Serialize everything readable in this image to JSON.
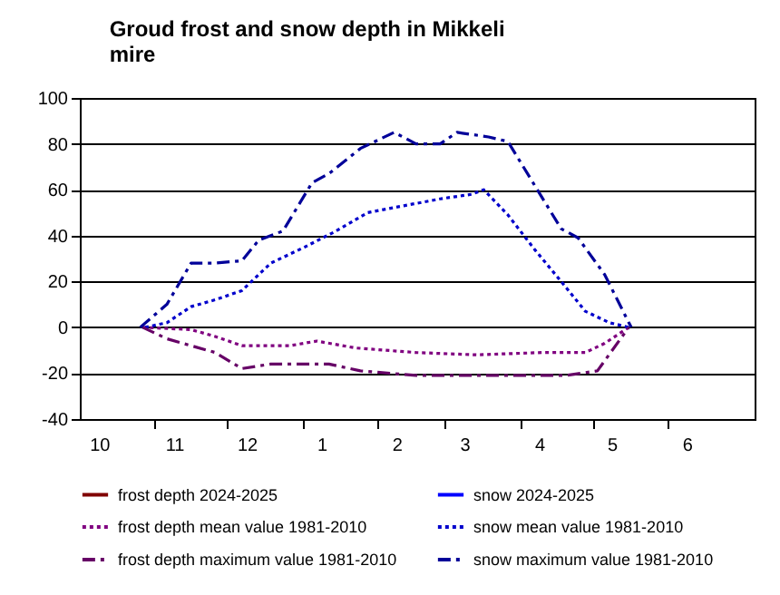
{
  "chart_data": {
    "type": "line",
    "title": "Groud frost and snow depth in Mikkeli mire",
    "xlim": [
      "2024-10-01",
      "2025-07-07"
    ],
    "xticks": [
      {
        "value": "2024-10-09",
        "label": "10"
      },
      {
        "value": "2024-11-01",
        "label": null
      },
      {
        "value": "2024-11-09",
        "label": "11"
      },
      {
        "value": "2024-12-01",
        "label": null
      },
      {
        "value": "2024-12-09",
        "label": "12"
      },
      {
        "value": "2025-01-01",
        "label": null
      },
      {
        "value": "2025-01-09",
        "label": "1"
      },
      {
        "value": "2025-02-01",
        "label": null
      },
      {
        "value": "2025-02-09",
        "label": "2"
      },
      {
        "value": "2025-03-01",
        "label": null
      },
      {
        "value": "2025-03-09",
        "label": "3"
      },
      {
        "value": "2025-04-01",
        "label": null
      },
      {
        "value": "2025-04-09",
        "label": "4"
      },
      {
        "value": "2025-05-01",
        "label": null
      },
      {
        "value": "2025-05-09",
        "label": "5"
      },
      {
        "value": "2025-06-01",
        "label": null
      },
      {
        "value": "2025-06-09",
        "label": "6"
      }
    ],
    "ylim": [
      -40,
      100
    ],
    "yticks": [
      -40,
      -20,
      0,
      20,
      40,
      60,
      80,
      100
    ],
    "grid": "y",
    "legend": "bottom",
    "series": [
      {
        "name": "frost depth 2024-2025",
        "color": "#800000",
        "line_style": "solid"
      },
      {
        "name": "snow 2024-2025",
        "color": "#0000ff",
        "line_style": "solid"
      },
      {
        "name": "frost depth mean value 1981-2010",
        "color": "#800080",
        "line_style": "dotted",
        "x": [
          "2024-10-27",
          "2024-11-16",
          "2024-11-26",
          "2024-12-07",
          "2024-12-27",
          "2025-01-07",
          "2025-01-23",
          "2025-02-17",
          "2025-03-14",
          "2025-04-10",
          "2025-04-28",
          "2025-05-06",
          "2025-05-16"
        ],
        "values": [
          0,
          -1,
          -4,
          -8,
          -8,
          -6,
          -9,
          -11,
          -12,
          -11,
          -11,
          -7,
          0
        ]
      },
      {
        "name": "snow mean value 1981-2010",
        "color": "#0000cc",
        "line_style": "dotted",
        "x": [
          "2024-10-28",
          "2024-11-06",
          "2024-11-16",
          "2024-11-26",
          "2024-12-07",
          "2024-12-19",
          "2025-01-02",
          "2025-01-15",
          "2025-01-28",
          "2025-02-12",
          "2025-02-27",
          "2025-03-12",
          "2025-03-17",
          "2025-03-27",
          "2025-04-07",
          "2025-04-18",
          "2025-04-28",
          "2025-05-08",
          "2025-05-16"
        ],
        "values": [
          0,
          2,
          9,
          12,
          16,
          28,
          35,
          42,
          50,
          53,
          56,
          58,
          60,
          49,
          34,
          20,
          7,
          2,
          0
        ]
      },
      {
        "name": "frost depth maximum value 1981-2010",
        "color": "#660066",
        "line_style": "dashed",
        "x": [
          "2024-10-27",
          "2024-11-06",
          "2024-11-16",
          "2024-11-26",
          "2024-12-07",
          "2024-12-19",
          "2025-01-12",
          "2025-01-25",
          "2025-02-17",
          "2025-03-14",
          "2025-04-20",
          "2025-05-03",
          "2025-05-16"
        ],
        "values": [
          0,
          -5,
          -8,
          -11,
          -18,
          -16,
          -16,
          -19,
          -21,
          -21,
          -21,
          -19,
          0
        ]
      },
      {
        "name": "snow maximum value 1981-2010",
        "color": "#000099",
        "line_style": "dashed",
        "x": [
          "2024-10-26",
          "2024-11-06",
          "2024-11-16",
          "2024-11-26",
          "2024-12-07",
          "2024-12-14",
          "2024-12-24",
          "2025-01-05",
          "2025-01-12",
          "2025-01-25",
          "2025-02-08",
          "2025-02-17",
          "2025-02-27",
          "2025-03-06",
          "2025-03-19",
          "2025-03-27",
          "2025-04-07",
          "2025-04-18",
          "2025-04-25",
          "2025-05-06",
          "2025-05-16",
          "2025-05-17"
        ],
        "values": [
          0,
          10,
          28,
          28,
          29,
          38,
          42,
          63,
          67,
          78,
          85,
          80,
          80,
          85,
          83,
          81,
          62,
          43,
          39,
          23,
          2,
          0
        ]
      }
    ]
  }
}
